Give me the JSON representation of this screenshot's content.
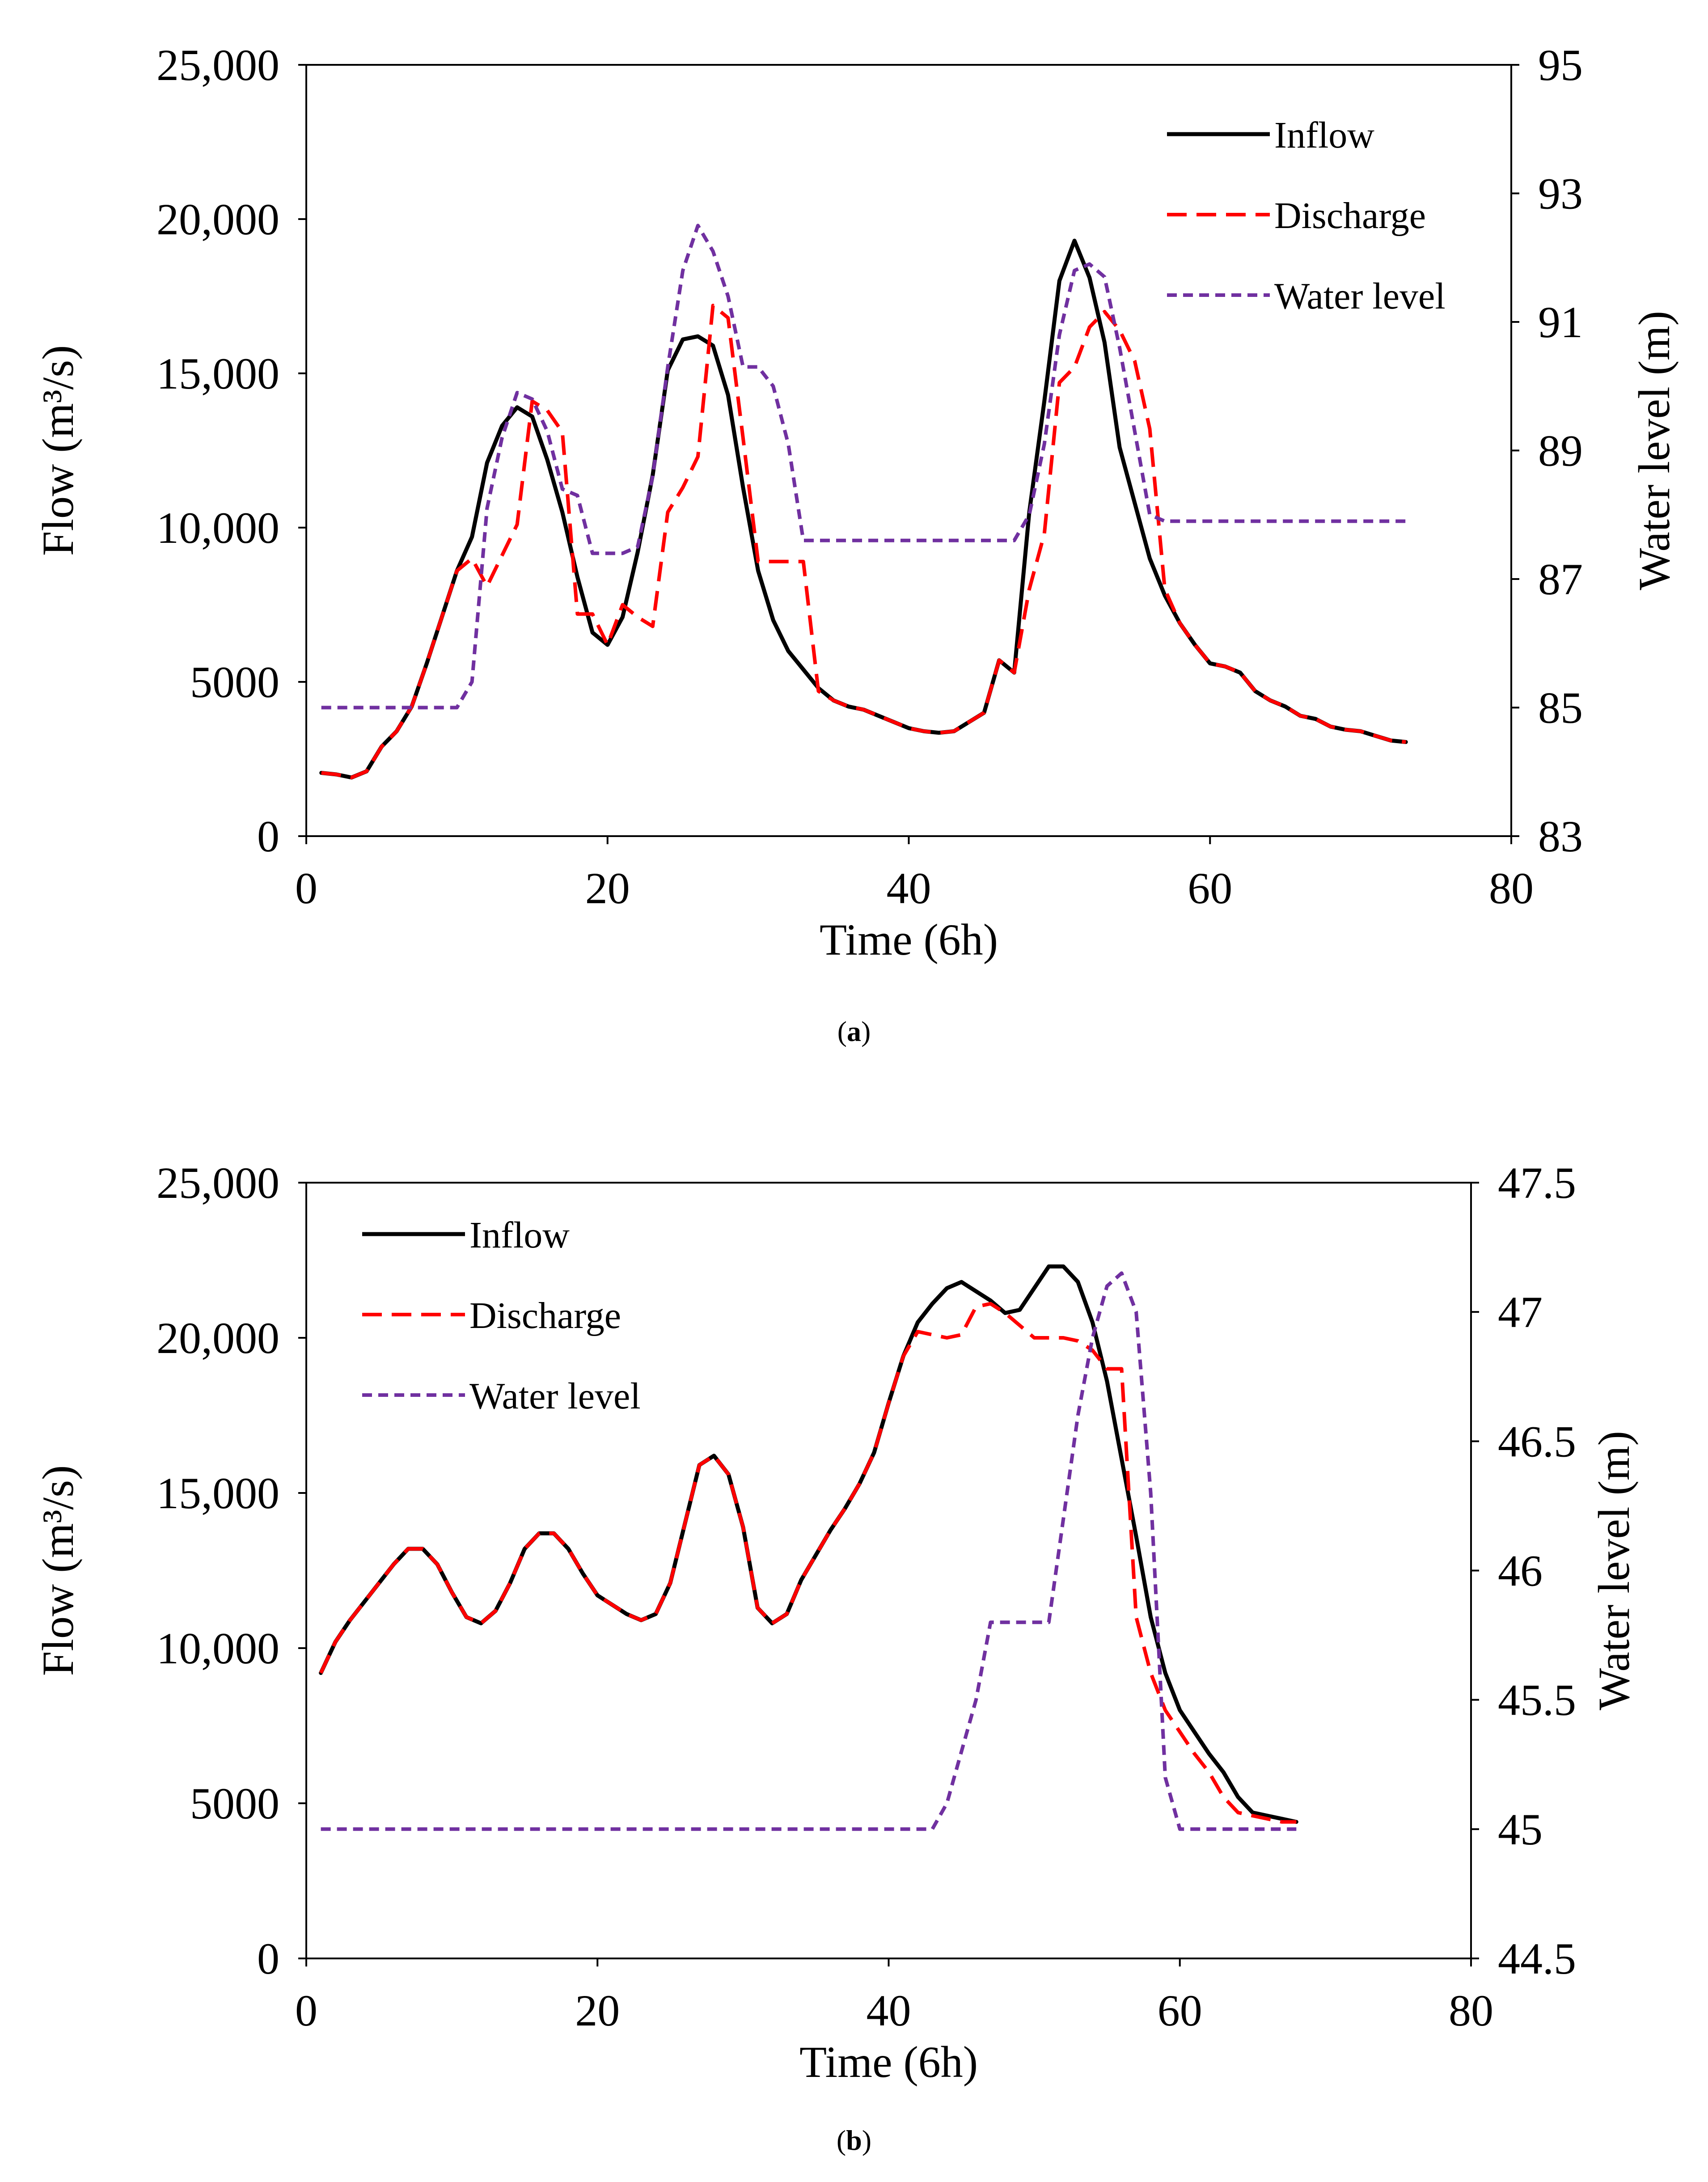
{
  "chart_data": [
    {
      "type": "line",
      "panel_label": "a",
      "xlabel": "Time (6h)",
      "ylabel_left": "Flow (m³/s)",
      "ylabel_right": "Water level (m)",
      "xlim": [
        0,
        80
      ],
      "xticks": [
        "0",
        "20",
        "40",
        "60",
        "80"
      ],
      "ylim_left": [
        0,
        25000
      ],
      "yticks_left": [
        "0",
        "5000",
        "10,000",
        "15,000",
        "20,000",
        "25,000"
      ],
      "ylim_right": [
        83,
        95
      ],
      "yticks_right": [
        "83",
        "85",
        "87",
        "89",
        "91",
        "93",
        "95"
      ],
      "grid": false,
      "legend_position": "top-right",
      "series": [
        {
          "name": "Inflow",
          "axis": "left",
          "color": "#000000",
          "style": "solid",
          "x": [
            1,
            2,
            3,
            4,
            5,
            6,
            7,
            8,
            9,
            10,
            11,
            12,
            13,
            14,
            15,
            16,
            17,
            18,
            19,
            20,
            21,
            22,
            23,
            24,
            25,
            26,
            27,
            28,
            29,
            30,
            31,
            32,
            33,
            34,
            35,
            36,
            37,
            38,
            39,
            40,
            41,
            42,
            43,
            44,
            45,
            46,
            47,
            48,
            49,
            50,
            51,
            52,
            53,
            54,
            55,
            56,
            57,
            58,
            59,
            60,
            61,
            62,
            63,
            64,
            65,
            66,
            67,
            68,
            69,
            70,
            71,
            72,
            73
          ],
          "values": [
            2050,
            2000,
            1900,
            2100,
            2900,
            3400,
            4200,
            5600,
            7100,
            8600,
            9700,
            12100,
            13300,
            13900,
            13600,
            12200,
            10500,
            8400,
            6600,
            6200,
            7100,
            9200,
            11700,
            15100,
            16100,
            16200,
            15900,
            14300,
            11300,
            8600,
            7000,
            6000,
            5400,
            4800,
            4400,
            4200,
            4100,
            3900,
            3700,
            3500,
            3400,
            3350,
            3400,
            3700,
            4000,
            5700,
            5300,
            10500,
            14100,
            18000,
            19300,
            18100,
            16000,
            12600,
            10800,
            9000,
            7800,
            6900,
            6200,
            5600,
            5500,
            5300,
            4700,
            4400,
            4200,
            3900,
            3800,
            3550,
            3450,
            3400,
            3250,
            3100,
            3050
          ]
        },
        {
          "name": "Discharge",
          "axis": "left",
          "color": "#ff0000",
          "style": "dashed",
          "x": [
            1,
            2,
            3,
            4,
            5,
            6,
            7,
            8,
            9,
            10,
            11,
            12,
            13,
            14,
            15,
            16,
            17,
            18,
            19,
            20,
            21,
            22,
            23,
            24,
            25,
            26,
            27,
            28,
            29,
            30,
            31,
            32,
            33,
            34,
            35,
            36,
            37,
            38,
            39,
            40,
            41,
            42,
            43,
            44,
            45,
            46,
            47,
            48,
            49,
            50,
            51,
            52,
            53,
            54,
            55,
            56,
            57,
            58,
            59,
            60,
            61,
            62,
            63,
            64,
            65,
            66,
            67,
            68,
            69,
            70,
            71,
            72,
            73
          ],
          "values": [
            2050,
            2000,
            1900,
            2100,
            2900,
            3400,
            4200,
            5600,
            7100,
            8600,
            9000,
            8100,
            9100,
            10100,
            14100,
            13800,
            13100,
            7200,
            7200,
            6200,
            7500,
            7100,
            6800,
            10500,
            11300,
            12300,
            17200,
            16800,
            12900,
            8900,
            8900,
            8900,
            8900,
            4700,
            4400,
            4200,
            4100,
            3900,
            3700,
            3500,
            3400,
            3350,
            3400,
            3700,
            4000,
            5700,
            5300,
            8000,
            9800,
            14700,
            15200,
            16500,
            17000,
            16400,
            15400,
            13200,
            8000,
            6900,
            6200,
            5600,
            5500,
            5300,
            4700,
            4400,
            4200,
            3900,
            3800,
            3550,
            3450,
            3400,
            3250,
            3100,
            3050
          ]
        },
        {
          "name": "Water level",
          "axis": "right",
          "color": "#7030a0",
          "style": "dotted",
          "x": [
            1,
            2,
            3,
            4,
            5,
            6,
            7,
            8,
            9,
            10,
            11,
            12,
            13,
            14,
            15,
            16,
            17,
            18,
            19,
            20,
            21,
            22,
            23,
            24,
            25,
            26,
            27,
            28,
            29,
            30,
            31,
            32,
            33,
            34,
            35,
            36,
            37,
            38,
            39,
            40,
            41,
            42,
            43,
            44,
            45,
            46,
            47,
            48,
            49,
            50,
            51,
            52,
            53,
            54,
            55,
            56,
            57,
            58,
            59,
            60,
            61,
            62,
            63,
            64,
            65,
            66,
            67,
            68,
            69,
            70,
            71,
            72,
            73
          ],
          "values": [
            85,
            85,
            85,
            85,
            85,
            85,
            85,
            85,
            85,
            85,
            85.4,
            88.1,
            89.2,
            89.9,
            89.8,
            89.3,
            88.4,
            88.3,
            87.4,
            87.4,
            87.4,
            87.5,
            88.6,
            90.3,
            91.8,
            92.5,
            92.1,
            91.4,
            90.3,
            90.3,
            90.0,
            89.1,
            87.6,
            87.6,
            87.6,
            87.6,
            87.6,
            87.6,
            87.6,
            87.6,
            87.6,
            87.6,
            87.6,
            87.6,
            87.6,
            87.6,
            87.6,
            88.0,
            89.1,
            90.8,
            91.8,
            91.9,
            91.7,
            90.6,
            89.3,
            88.0,
            87.9,
            87.9,
            87.9,
            87.9,
            87.9,
            87.9,
            87.9,
            87.9,
            87.9,
            87.9,
            87.9,
            87.9,
            87.9,
            87.9,
            87.9,
            87.9,
            87.9
          ]
        }
      ]
    },
    {
      "type": "line",
      "panel_label": "b",
      "xlabel": "Time (6h)",
      "ylabel_left": "Flow (m³/s)",
      "ylabel_right": "Water level (m)",
      "xlim": [
        0,
        80
      ],
      "xticks": [
        "0",
        "20",
        "40",
        "60",
        "80"
      ],
      "ylim_left": [
        0,
        25000
      ],
      "yticks_left": [
        "0",
        "5000",
        "10,000",
        "15,000",
        "20,000",
        "25,000"
      ],
      "ylim_right": [
        44.5,
        47.5
      ],
      "yticks_right": [
        "44.5",
        "45",
        "45.5",
        "46",
        "46.5",
        "47",
        "47.5"
      ],
      "grid": false,
      "legend_position": "top-left",
      "series": [
        {
          "name": "Inflow",
          "axis": "left",
          "color": "#000000",
          "style": "solid",
          "x": [
            1,
            2,
            3,
            4,
            5,
            6,
            7,
            8,
            9,
            10,
            11,
            12,
            13,
            14,
            15,
            16,
            17,
            18,
            19,
            20,
            21,
            22,
            23,
            24,
            25,
            26,
            27,
            28,
            29,
            30,
            31,
            32,
            33,
            34,
            35,
            36,
            37,
            38,
            39,
            40,
            41,
            42,
            43,
            44,
            45,
            46,
            47,
            48,
            49,
            50,
            51,
            52,
            53,
            54,
            55,
            56,
            57,
            58,
            59,
            60,
            61,
            62,
            63,
            64,
            65,
            66,
            67,
            68
          ],
          "values": [
            9200,
            10200,
            10900,
            11500,
            12100,
            12700,
            13200,
            13200,
            12700,
            11800,
            11000,
            10800,
            11200,
            12100,
            13200,
            13700,
            13700,
            13200,
            12400,
            11700,
            11400,
            11100,
            10900,
            11100,
            12100,
            14000,
            15900,
            16200,
            15600,
            13900,
            11300,
            10800,
            11100,
            12200,
            13000,
            13800,
            14500,
            15300,
            16300,
            17900,
            19400,
            20500,
            21100,
            21600,
            21800,
            21500,
            21200,
            20800,
            20900,
            21600,
            22300,
            22300,
            21800,
            20500,
            18600,
            16100,
            13600,
            11000,
            9200,
            8000,
            7300,
            6600,
            6000,
            5200,
            4700,
            4600,
            4500,
            4400
          ]
        },
        {
          "name": "Discharge",
          "axis": "left",
          "color": "#ff0000",
          "style": "dashed",
          "x": [
            1,
            2,
            3,
            4,
            5,
            6,
            7,
            8,
            9,
            10,
            11,
            12,
            13,
            14,
            15,
            16,
            17,
            18,
            19,
            20,
            21,
            22,
            23,
            24,
            25,
            26,
            27,
            28,
            29,
            30,
            31,
            32,
            33,
            34,
            35,
            36,
            37,
            38,
            39,
            40,
            41,
            42,
            43,
            44,
            45,
            46,
            47,
            48,
            49,
            50,
            51,
            52,
            53,
            54,
            55,
            56,
            57,
            58,
            59,
            60,
            61,
            62,
            63,
            64,
            65,
            66,
            67,
            68
          ],
          "values": [
            9200,
            10200,
            10900,
            11500,
            12100,
            12700,
            13200,
            13200,
            12700,
            11800,
            11000,
            10800,
            11200,
            12100,
            13200,
            13700,
            13700,
            13200,
            12400,
            11700,
            11400,
            11100,
            10900,
            11100,
            12100,
            14000,
            15900,
            16200,
            15600,
            13900,
            11300,
            10800,
            11100,
            12200,
            13000,
            13800,
            14500,
            15300,
            16300,
            17900,
            19400,
            20200,
            20100,
            20000,
            20100,
            21000,
            21100,
            20800,
            20400,
            20000,
            20000,
            20000,
            19900,
            19600,
            19000,
            19000,
            11000,
            9200,
            8000,
            7300,
            6600,
            6000,
            5200,
            4700,
            4600,
            4500,
            4400,
            4400
          ]
        },
        {
          "name": "Water level",
          "axis": "right",
          "color": "#7030a0",
          "style": "dotted",
          "x": [
            1,
            2,
            3,
            4,
            5,
            6,
            7,
            8,
            9,
            10,
            11,
            12,
            13,
            14,
            15,
            16,
            17,
            18,
            19,
            20,
            21,
            22,
            23,
            24,
            25,
            26,
            27,
            28,
            29,
            30,
            31,
            32,
            33,
            34,
            35,
            36,
            37,
            38,
            39,
            40,
            41,
            42,
            43,
            44,
            45,
            46,
            47,
            48,
            49,
            50,
            51,
            52,
            53,
            54,
            55,
            56,
            57,
            58,
            59,
            60,
            61,
            62,
            63,
            64,
            65,
            66,
            67,
            68
          ],
          "values": [
            45,
            45,
            45,
            45,
            45,
            45,
            45,
            45,
            45,
            45,
            45,
            45,
            45,
            45,
            45,
            45,
            45,
            45,
            45,
            45,
            45,
            45,
            45,
            45,
            45,
            45,
            45,
            45,
            45,
            45,
            45,
            45,
            45,
            45,
            45,
            45,
            45,
            45,
            45,
            45,
            45,
            45,
            45,
            45.1,
            45.3,
            45.5,
            45.8,
            45.8,
            45.8,
            45.8,
            45.8,
            46.2,
            46.6,
            46.9,
            47.1,
            47.15,
            47.0,
            46.3,
            45.2,
            45,
            45,
            45,
            45,
            45,
            45,
            45,
            45,
            45
          ]
        }
      ]
    }
  ]
}
